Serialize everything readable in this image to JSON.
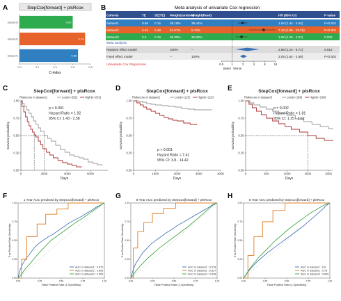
{
  "panel_letters": [
    "A",
    "B",
    "C",
    "D",
    "E",
    "F",
    "G",
    "H"
  ],
  "colors": {
    "green": "#2eab4e",
    "orange": "#e8632c",
    "blue": "#2f7fc1",
    "km_gray": "#9a9a9a",
    "km_red": "#a83232",
    "roc_blue": "#4a78b5",
    "roc_orange": "#e07b20",
    "roc_green": "#44a648",
    "meta_title_bg": "#2f4f8f",
    "meta_text": "#2f4fa8",
    "meta_red": "#d42a2a"
  },
  "chart_data": [
    {
      "panel": "A",
      "type": "bar",
      "orientation": "horizontal",
      "title": "StepCox[forward] + plsRcox",
      "categories": [
        "dataset3",
        "dataset2",
        "dataset1"
      ],
      "values": [
        0.6,
        0.74,
        0.66
      ],
      "data_labels": [
        "0.60",
        "0.74",
        "0.66"
      ],
      "bar_colors": [
        "#2eab4e",
        "#e8632c",
        "#2f7fc1"
      ],
      "xlabel": "C-index",
      "xlim": [
        0,
        0.8
      ],
      "xticks": [
        "0.0",
        "0.2",
        "0.4",
        "0.6",
        "0.8"
      ]
    },
    {
      "panel": "B",
      "type": "table",
      "title": "Meta analysis of univariate Cox regression",
      "columns": [
        "Cohorts",
        "TE",
        "SE(TE)",
        "Weight(random)",
        "Weight(fixed)",
        "HR (95% CI)",
        "P value"
      ],
      "rows": [
        {
          "cohort": "dataset1",
          "te": "0.66",
          "se": "0.15",
          "w_random": "39.18%",
          "w_fixed": "38.44%",
          "hr": 1.94,
          "lo": 1.44,
          "hi": 2.62,
          "hr_text": "1.94 (1.44 - 2.62)",
          "p": "P<0.001",
          "color": "#2f7fc1"
        },
        {
          "cohort": "dataset2",
          "te": "2.01",
          "se": "0.48",
          "w_random": "24.97%",
          "w_fixed": "5.73%",
          "hr": 7.46,
          "lo": 2.89,
          "hi": 19.25,
          "hr_text": "7.46 (2.89 - 19.25)",
          "p": "P<0.001",
          "color": "#e8632c"
        },
        {
          "cohort": "dataset3",
          "te": "0.6",
          "se": "0.19",
          "w_random": "35.85%",
          "w_fixed": "35.83%",
          "hr": 1.82,
          "lo": 1.25,
          "hi": 2.67,
          "hr_text": "1.82 (1.25 - 2.67)",
          "p": "0.002",
          "color": "#2eab4e"
        }
      ],
      "meta_label": "Meta analysis",
      "models": [
        {
          "label": "Random effect model",
          "w_random": "100%",
          "w_fixed": "--",
          "hr": 2.66,
          "lo": 1.24,
          "hi": 5.71,
          "hr_text": "2.66 (1.24 - 5.71)",
          "p": "0.012"
        },
        {
          "label": "Fixed effect model",
          "w_random": "--",
          "w_fixed": "100%",
          "hr": 2.05,
          "lo": 1.64,
          "hi": 2.58,
          "hr_text": "2.05 (1.64 - 2.58)",
          "p": "P<0.001"
        }
      ],
      "footer_label": "Univariate Cox Regression",
      "axis_ticks": [
        "0.5",
        "1",
        "2",
        "4",
        "8",
        "16"
      ],
      "axis_values": [
        0.5,
        1,
        2,
        4,
        8,
        16
      ],
      "scale": "log",
      "better_label": "Better",
      "worse_label": "Worse"
    },
    {
      "panel": "C",
      "type": "line",
      "subtype": "kaplan-meier",
      "title": "StepCox[forward] + plsRcox",
      "legend_title": "Riskscore in dataset1",
      "legend": [
        "Low(n=252)",
        "High(n=201)"
      ],
      "series": [
        {
          "name": "Low(n=252)",
          "color": "#9a9a9a",
          "x": [
            0,
            150,
            300,
            500,
            700,
            900,
            1100,
            1300,
            1500,
            1700,
            2000,
            2300,
            2600,
            3000,
            3400,
            3800,
            4200,
            4600,
            5000,
            5400,
            5800,
            6200,
            6600,
            7000
          ],
          "y": [
            1.0,
            0.96,
            0.92,
            0.87,
            0.82,
            0.77,
            0.71,
            0.66,
            0.61,
            0.56,
            0.5,
            0.46,
            0.42,
            0.36,
            0.3,
            0.26,
            0.22,
            0.2,
            0.18,
            0.16,
            0.12,
            0.1,
            0.08,
            0.07
          ]
        },
        {
          "name": "High(n=201)",
          "color": "#a83232",
          "x": [
            0,
            100,
            250,
            400,
            550,
            700,
            850,
            1000,
            1150,
            1300,
            1500,
            1700,
            1900,
            2200,
            2500,
            2800,
            3200,
            3600,
            4000,
            4400,
            4800,
            5200
          ],
          "y": [
            1.0,
            0.92,
            0.84,
            0.77,
            0.7,
            0.64,
            0.59,
            0.55,
            0.51,
            0.48,
            0.42,
            0.37,
            0.31,
            0.26,
            0.22,
            0.18,
            0.14,
            0.11,
            0.09,
            0.07,
            0.05,
            0.04
          ]
        }
      ],
      "median_x": [
        1150,
        2000
      ],
      "annotations": [
        "p < 0.001",
        "Hazard Ratio = 1.92",
        "95% CI: 1.43 - 2.58"
      ],
      "annot_pos": "top",
      "xlabel": "Days",
      "ylabel": "Survival probability",
      "xlim": [
        0,
        7500
      ],
      "ylim": [
        0,
        1
      ],
      "xticks": [
        0,
        2000,
        4000,
        6000
      ],
      "yticks": [
        0.0,
        0.25,
        0.5,
        0.75,
        1.0
      ],
      "ytick_labels": [
        "0.00",
        "0.25",
        "0.50",
        "0.75",
        "1.00"
      ]
    },
    {
      "panel": "D",
      "type": "line",
      "subtype": "kaplan-meier",
      "title": "StepCox[forward] + plsRcox",
      "legend_title": "Riskscore in dataset2",
      "legend": [
        "Low(n=113)",
        "High(n=113)"
      ],
      "series": [
        {
          "name": "Low(n=113)",
          "color": "#9a9a9a",
          "x": [
            0,
            200,
            400,
            600,
            800,
            1000,
            1300,
            1600,
            1900,
            2200,
            2500,
            2800,
            3200,
            3600
          ],
          "y": [
            1.0,
            0.99,
            0.98,
            0.96,
            0.95,
            0.94,
            0.93,
            0.92,
            0.91,
            0.89,
            0.88,
            0.87,
            0.87,
            0.87
          ]
        },
        {
          "name": "High(n=113)",
          "color": "#a83232",
          "x": [
            0,
            150,
            300,
            450,
            600,
            800,
            1000,
            1200,
            1400,
            1600,
            1800,
            2000,
            2300,
            2600,
            2900
          ],
          "y": [
            1.0,
            0.97,
            0.94,
            0.91,
            0.88,
            0.85,
            0.82,
            0.79,
            0.76,
            0.74,
            0.72,
            0.71,
            0.68,
            0.66,
            0.65
          ]
        }
      ],
      "median_x": [],
      "annotations": [
        "p < 0.001",
        "Hazard Ratio = 7.41",
        "95% CI: 3.8 - 14.42"
      ],
      "annot_pos": "bottom",
      "xlabel": "Days",
      "ylabel": "Survival probability",
      "xlim": [
        0,
        4000
      ],
      "ylim": [
        0,
        1
      ],
      "xticks": [
        0,
        1000,
        2000,
        3000,
        4000
      ],
      "yticks": [
        0.0,
        0.25,
        0.5,
        0.75,
        1.0
      ],
      "ytick_labels": [
        "0.00",
        "0.25",
        "0.50",
        "0.75",
        "1.00"
      ]
    },
    {
      "panel": "E",
      "type": "line",
      "subtype": "kaplan-meier",
      "title": "StepCox[forward] + plsRcox",
      "legend_title": "Riskscore in dataset3",
      "legend": [
        "Low(n=199)",
        "High(n=199)"
      ],
      "series": [
        {
          "name": "Low(n=199)",
          "color": "#9a9a9a",
          "x": [
            0,
            100,
            200,
            350,
            500,
            650,
            800,
            1000,
            1200,
            1400,
            1600,
            1800,
            2000,
            2100
          ],
          "y": [
            1.0,
            0.97,
            0.94,
            0.91,
            0.88,
            0.85,
            0.82,
            0.79,
            0.74,
            0.7,
            0.66,
            0.63,
            0.6,
            0.59
          ]
        },
        {
          "name": "High(n=199)",
          "color": "#a83232",
          "x": [
            0,
            80,
            160,
            260,
            380,
            500,
            650,
            800,
            950,
            1100,
            1300,
            1500,
            1700,
            1900,
            2100
          ],
          "y": [
            1.0,
            0.95,
            0.9,
            0.85,
            0.8,
            0.75,
            0.71,
            0.67,
            0.63,
            0.59,
            0.55,
            0.5,
            0.46,
            0.43,
            0.42
          ]
        }
      ],
      "median_x": [
        1500
      ],
      "annotations": [
        "p = 0.002",
        "Hazard Ratio = 1.81",
        "95% CI: 1.25 - 2.62"
      ],
      "annot_pos": "top",
      "xlabel": "Days",
      "ylabel": "Survival probability",
      "xlim": [
        0,
        2100
      ],
      "ylim": [
        0,
        1
      ],
      "xticks": [
        0,
        500,
        1000,
        1500,
        2000
      ],
      "yticks": [
        0.0,
        0.25,
        0.5,
        0.75,
        1.0
      ],
      "ytick_labels": [
        "0.00",
        "0.25",
        "0.50",
        "0.75",
        "1.00"
      ]
    },
    {
      "panel": "F",
      "type": "line",
      "subtype": "roc",
      "title": "1 Year AUC predicted by StepCox[forward] + plsRcox",
      "legend": [
        "AUC in dataset1 : 0.673",
        "AUC in dataset2 : 0.805",
        "AUC in dataset3 : 0.663"
      ],
      "series": [
        {
          "name": "AUC in dataset1 : 0.673",
          "color": "#4a78b5",
          "x": [
            0,
            0.02,
            0.05,
            0.08,
            0.12,
            0.16,
            0.2,
            0.25,
            0.3,
            0.35,
            0.4,
            0.45,
            0.5,
            0.55,
            0.6,
            0.65,
            0.7,
            0.75,
            0.8,
            0.85,
            0.9,
            0.95,
            1.0
          ],
          "y": [
            0,
            0.1,
            0.18,
            0.24,
            0.3,
            0.36,
            0.42,
            0.47,
            0.51,
            0.55,
            0.58,
            0.62,
            0.66,
            0.7,
            0.74,
            0.77,
            0.8,
            0.83,
            0.87,
            0.9,
            0.94,
            0.97,
            1.0
          ]
        },
        {
          "name": "AUC in dataset2 : 0.805",
          "color": "#e07b20",
          "x": [
            0,
            0.04,
            0.04,
            0.1,
            0.1,
            0.22,
            0.22,
            0.32,
            0.32,
            0.45,
            0.45,
            0.58,
            0.58,
            0.68,
            1.0
          ],
          "y": [
            0,
            0,
            0.25,
            0.25,
            0.55,
            0.55,
            0.72,
            0.72,
            0.85,
            0.85,
            0.92,
            0.92,
            1.0,
            1.0,
            1.0
          ]
        },
        {
          "name": "AUC in dataset3 : 0.663",
          "color": "#44a648",
          "x": [
            0,
            0.04,
            0.08,
            0.13,
            0.18,
            0.23,
            0.28,
            0.33,
            0.38,
            0.44,
            0.5,
            0.56,
            0.62,
            0.68,
            0.74,
            0.8,
            0.86,
            0.92,
            0.97,
            1.0
          ],
          "y": [
            0,
            0.05,
            0.12,
            0.18,
            0.25,
            0.32,
            0.38,
            0.44,
            0.5,
            0.55,
            0.6,
            0.65,
            0.7,
            0.75,
            0.79,
            0.84,
            0.89,
            0.94,
            0.98,
            1.0
          ]
        }
      ],
      "xlabel": "False Positive Rate (1-Specificity)",
      "ylabel": "True Positive Rate (Sensitivity)",
      "xlim": [
        0,
        1
      ],
      "ylim": [
        0,
        1
      ],
      "xticks": [
        0,
        0.25,
        0.5,
        0.75,
        1.0
      ],
      "tick_labels": [
        "0.00",
        "0.25",
        "0.50",
        "0.75",
        "1.00"
      ]
    },
    {
      "panel": "G",
      "type": "line",
      "subtype": "roc",
      "title": "8 Year AUC predicted by StepCox[forward] + plsRcox",
      "legend": [
        "AUC in dataset1 : 0.678",
        "AUC in dataset2 : 0.827",
        "AUC in dataset3 : 0.638"
      ],
      "series": [
        {
          "name": "AUC in dataset1 : 0.678",
          "color": "#4a78b5",
          "x": [
            0,
            0.03,
            0.06,
            0.1,
            0.14,
            0.19,
            0.24,
            0.3,
            0.36,
            0.42,
            0.48,
            0.54,
            0.6,
            0.66,
            0.72,
            0.78,
            0.84,
            0.9,
            0.95,
            1.0
          ],
          "y": [
            0,
            0.12,
            0.2,
            0.27,
            0.34,
            0.4,
            0.46,
            0.51,
            0.56,
            0.61,
            0.65,
            0.7,
            0.74,
            0.78,
            0.82,
            0.86,
            0.9,
            0.94,
            0.98,
            1.0
          ]
        },
        {
          "name": "AUC in dataset2 : 0.827",
          "color": "#e07b20",
          "x": [
            0,
            0.03,
            0.03,
            0.08,
            0.08,
            0.15,
            0.15,
            0.25,
            0.25,
            0.38,
            0.38,
            0.52,
            0.52,
            0.68,
            1.0
          ],
          "y": [
            0,
            0,
            0.4,
            0.4,
            0.62,
            0.62,
            0.74,
            0.74,
            0.86,
            0.86,
            0.93,
            0.93,
            1.0,
            1.0,
            1.0
          ]
        },
        {
          "name": "AUC in dataset3 : 0.638",
          "color": "#44a648",
          "x": [
            0,
            0.05,
            0.1,
            0.15,
            0.21,
            0.27,
            0.33,
            0.4,
            0.47,
            0.54,
            0.61,
            0.68,
            0.75,
            0.82,
            0.89,
            0.95,
            1.0
          ],
          "y": [
            0,
            0.08,
            0.15,
            0.21,
            0.28,
            0.34,
            0.4,
            0.46,
            0.52,
            0.58,
            0.64,
            0.7,
            0.77,
            0.84,
            0.91,
            0.97,
            1.0
          ]
        }
      ],
      "xlabel": "False Positive Rate (1-Specificity)",
      "ylabel": "True Positive Rate (Sensitivity)",
      "xlim": [
        0,
        1
      ],
      "ylim": [
        0,
        1
      ],
      "xticks": [
        0,
        0.25,
        0.5,
        0.75,
        1.0
      ],
      "tick_labels": [
        "0.00",
        "0.25",
        "0.50",
        "0.75",
        "1.00"
      ]
    },
    {
      "panel": "H",
      "type": "line",
      "subtype": "roc",
      "title": "5 Year AUC predicted by StepCox[forward] + plsRcox",
      "legend": [
        "AUC in dataset1 : 0.6",
        "AUC in dataset2 : 0.78",
        "AUC in dataset3 : 0.650"
      ],
      "series": [
        {
          "name": "AUC in dataset1 : 0.6",
          "color": "#4a78b5",
          "x": [
            0,
            0.05,
            0.1,
            0.16,
            0.22,
            0.28,
            0.35,
            0.42,
            0.49,
            0.56,
            0.63,
            0.7,
            0.77,
            0.84,
            0.91,
            0.96,
            1.0
          ],
          "y": [
            0,
            0.08,
            0.15,
            0.22,
            0.28,
            0.34,
            0.4,
            0.46,
            0.52,
            0.58,
            0.64,
            0.7,
            0.77,
            0.84,
            0.91,
            0.97,
            1.0
          ]
        },
        {
          "name": "AUC in dataset2 : 0.78",
          "color": "#e07b20",
          "x": [
            0,
            0.05,
            0.05,
            0.12,
            0.12,
            0.22,
            0.22,
            0.34,
            0.34,
            0.48,
            0.48,
            0.6,
            1.0
          ],
          "y": [
            0,
            0,
            0.3,
            0.3,
            0.55,
            0.55,
            0.75,
            0.75,
            0.9,
            0.9,
            1.0,
            1.0,
            1.0
          ]
        },
        {
          "name": "AUC in dataset3 : 0.650",
          "color": "#44a648",
          "x": [
            0,
            0.04,
            0.08,
            0.13,
            0.18,
            0.24,
            0.3,
            0.36,
            0.42,
            0.48,
            0.54,
            0.6,
            0.66,
            0.72,
            0.78,
            0.84,
            0.9,
            0.95,
            1.0
          ],
          "y": [
            0,
            0.07,
            0.14,
            0.21,
            0.28,
            0.35,
            0.42,
            0.49,
            0.55,
            0.61,
            0.67,
            0.72,
            0.77,
            0.82,
            0.87,
            0.91,
            0.95,
            0.98,
            1.0
          ]
        }
      ],
      "xlabel": "False Positive Rate (1-Specificity)",
      "ylabel": "True Positive Rate (Sensitivity)",
      "xlim": [
        0,
        1
      ],
      "ylim": [
        0,
        1
      ],
      "xticks": [
        0,
        0.25,
        0.5,
        0.75,
        1.0
      ],
      "tick_labels": [
        "0.00",
        "0.25",
        "0.50",
        "0.75",
        "1.00"
      ]
    }
  ]
}
